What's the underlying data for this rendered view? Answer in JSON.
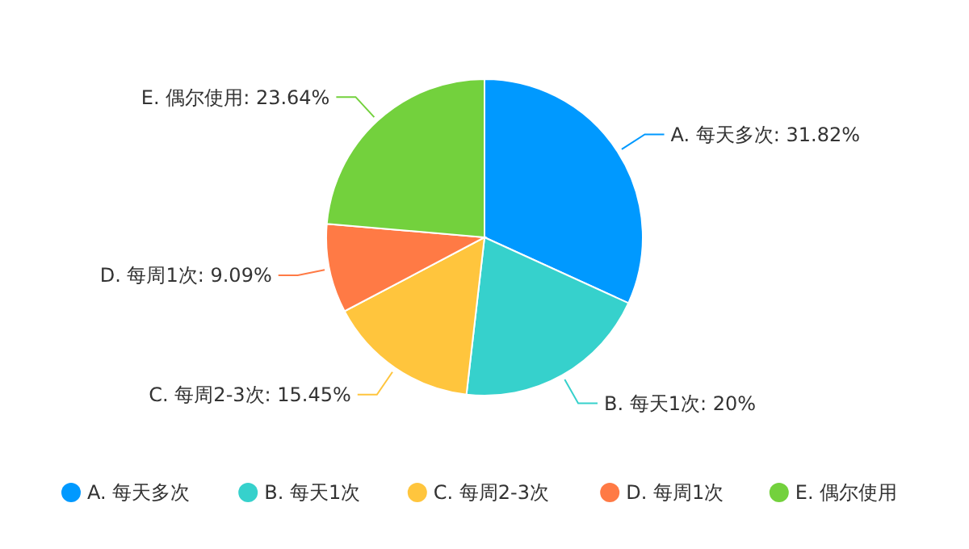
{
  "chart_data": {
    "type": "pie",
    "categories": [
      "A. 每天多次",
      "B. 每天1次",
      "C. 每周2-3次",
      "D. 每周1次",
      "E. 偶尔使用"
    ],
    "values": [
      31.82,
      20,
      15.45,
      9.09,
      23.64
    ],
    "value_labels": [
      "A. 每天多次: 31.82%",
      "B. 每天1次: 20%",
      "C. 每周2-3次: 15.45%",
      "D. 每周1次: 9.09%",
      "E. 偶尔使用: 23.64%"
    ],
    "colors": [
      "#0099ff",
      "#36d1cc",
      "#ffc53d",
      "#ff7a45",
      "#73d13d"
    ],
    "legend": "bottom"
  }
}
